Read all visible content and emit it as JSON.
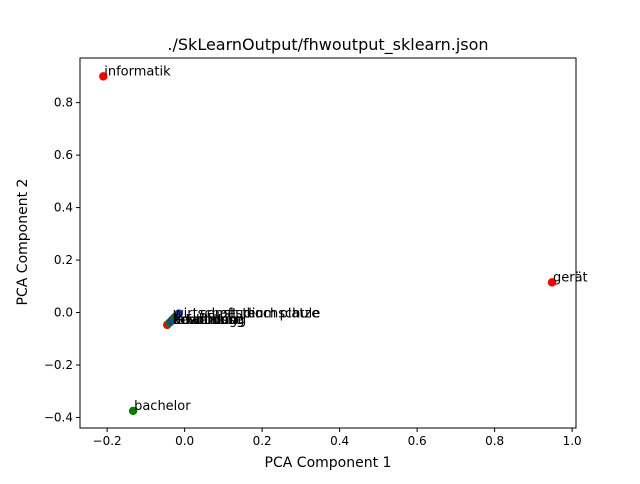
{
  "chart_data": {
    "type": "scatter",
    "title": "./SkLearnOutput/fhwoutput_sklearn.json",
    "xlabel": "PCA Component 1",
    "ylabel": "PCA Component 2",
    "xlim": [
      -0.27,
      1.01
    ],
    "ylim": [
      -0.44,
      0.97
    ],
    "xticks": [
      -0.2,
      0.0,
      0.2,
      0.4,
      0.6,
      0.8,
      1.0
    ],
    "xtick_labels": [
      "−0.2",
      "0.0",
      "0.2",
      "0.4",
      "0.6",
      "0.8",
      "1.0"
    ],
    "yticks": [
      -0.4,
      -0.2,
      0.0,
      0.2,
      0.4,
      0.6,
      0.8
    ],
    "ytick_labels": [
      "−0.4",
      "−0.2",
      "0.0",
      "0.2",
      "0.4",
      "0.6",
      "0.8"
    ],
    "grid": false,
    "colors": {
      "red": "#ff0000",
      "green": "#008000",
      "blue": "#1f3f9f"
    },
    "points": [
      {
        "label": "informatik",
        "x": -0.21,
        "y": 0.9,
        "color": "#ff0000"
      },
      {
        "label": "gerät",
        "x": 0.948,
        "y": 0.115,
        "color": "#ff0000"
      },
      {
        "label": "bachelor",
        "x": -0.133,
        "y": -0.375,
        "color": "#008000"
      },
      {
        "label": "",
        "x": -0.045,
        "y": -0.047,
        "color": "#ff0000"
      },
      {
        "label": "",
        "x": -0.04,
        "y": -0.04,
        "color": "#008000"
      },
      {
        "label": "",
        "x": -0.035,
        "y": -0.033,
        "color": "#1f3f9f"
      },
      {
        "label": "",
        "x": -0.03,
        "y": -0.025,
        "color": "#1f3f9f"
      },
      {
        "label": "",
        "x": -0.025,
        "y": -0.018,
        "color": "#008000"
      },
      {
        "label": "",
        "x": -0.02,
        "y": -0.01,
        "color": "#1f3f9f"
      },
      {
        "label": "",
        "x": -0.015,
        "y": -0.004,
        "color": "#1f3f9f"
      }
    ],
    "cluster_labels": [
      {
        "text": "platze",
        "x": 0.245,
        "y": -0.003
      },
      {
        "text": "hochschule",
        "x": 0.16,
        "y": -0.003
      },
      {
        "text": "studium",
        "x": 0.1,
        "y": -0.003
      },
      {
        "text": "semester",
        "x": 0.04,
        "y": -0.003
      },
      {
        "text": "wirtschaft",
        "x": -0.03,
        "y": -0.003
      },
      {
        "text": "ausbildung",
        "x": -0.03,
        "y": -0.028
      },
      {
        "text": "erfahrung",
        "x": -0.03,
        "y": -0.028
      },
      {
        "text": "bewerbung",
        "x": -0.03,
        "y": -0.028
      },
      {
        "text": "fakultat",
        "x": -0.03,
        "y": -0.028
      },
      {
        "text": "kenntnisse",
        "x": -0.03,
        "y": -0.028
      }
    ]
  }
}
